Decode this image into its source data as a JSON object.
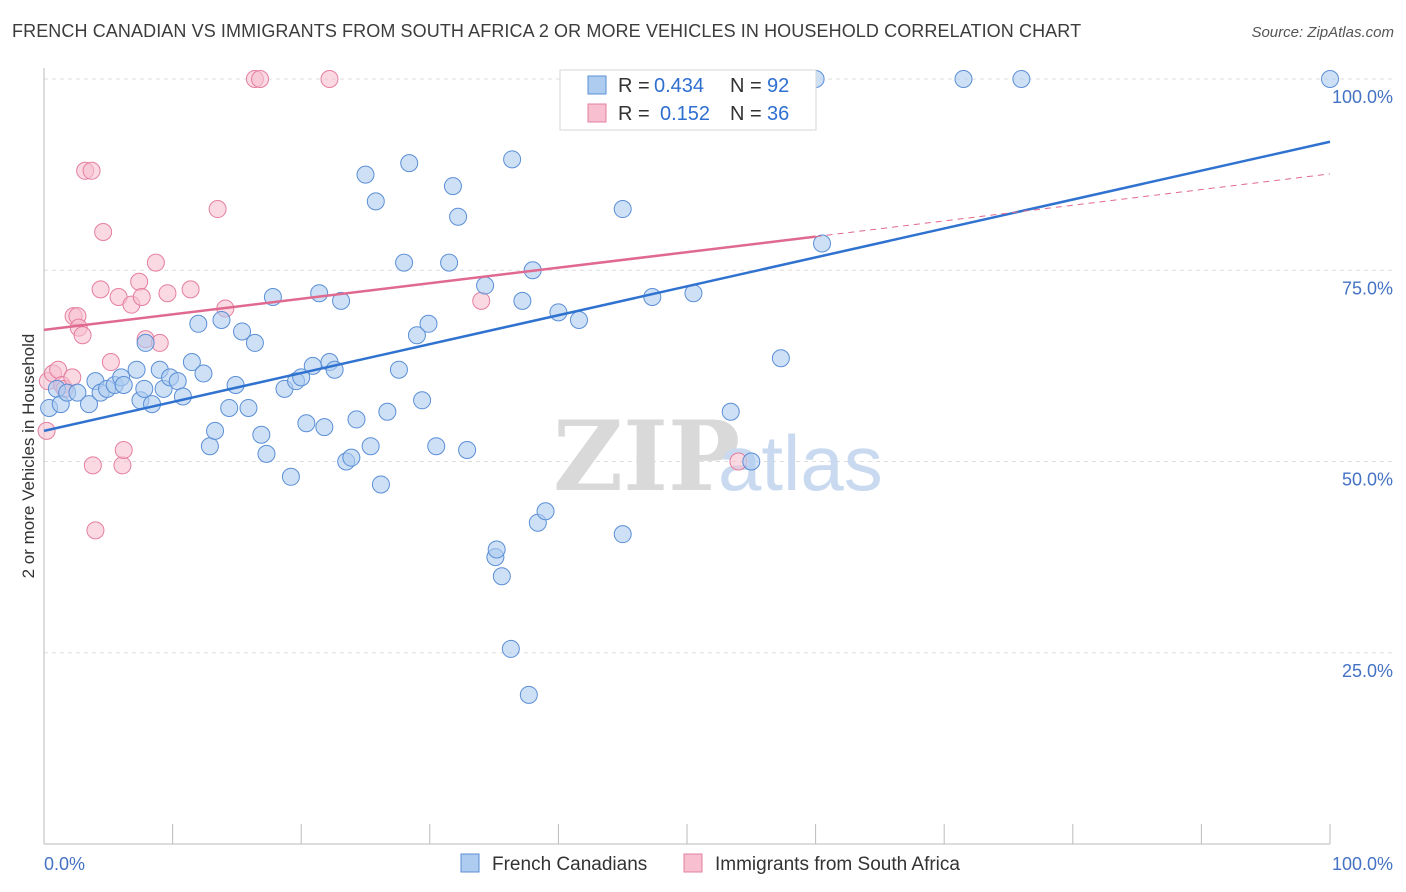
{
  "title": "FRENCH CANADIAN VS IMMIGRANTS FROM SOUTH AFRICA 2 OR MORE VEHICLES IN HOUSEHOLD CORRELATION CHART",
  "source": "Source: ZipAtlas.com",
  "watermark": {
    "zip": "ZIP",
    "atlas": "atlas"
  },
  "legend_top": {
    "rows": [
      {
        "r_label": "R =",
        "r_value": "0.434",
        "n_label": "N =",
        "n_value": "92"
      },
      {
        "r_label": "R =",
        "r_value": "0.152",
        "n_label": "N =",
        "n_value": "36"
      }
    ]
  },
  "legend_bottom": {
    "items": [
      {
        "label": "French Canadians"
      },
      {
        "label": "Immigrants from South Africa"
      }
    ]
  },
  "colors": {
    "blue_fill": "#aecbf0",
    "blue_stroke": "#5b8fd6",
    "blue_line": "#2f72cf",
    "pink_fill": "#f7bfd0",
    "pink_stroke": "#e57fa0",
    "pink_line": "#e0698f",
    "grid": "#dddddd",
    "tick_label": "#4472c4"
  },
  "chart_data": {
    "type": "scatter",
    "xlabel": "",
    "ylabel": "2 or more Vehicles in Household",
    "xlim": [
      0,
      100
    ],
    "ylim": [
      0,
      102
    ],
    "x_tick_labels": [
      "0.0%",
      "100.0%"
    ],
    "y_tick_labels": [
      "25.0%",
      "50.0%",
      "75.0%",
      "100.0%"
    ],
    "y_ticks": [
      25,
      50,
      75,
      100
    ],
    "grid": "horizontal dashed",
    "legend_placement": "top-center",
    "series": [
      {
        "name": "French Canadians",
        "R": 0.434,
        "N": 92,
        "trend": {
          "x0": 0,
          "y0": 54.0,
          "x1": 100,
          "y1": 91.8
        },
        "points": [
          [
            0.4,
            57
          ],
          [
            1.0,
            59.5
          ],
          [
            1.3,
            57.5
          ],
          [
            1.8,
            59
          ],
          [
            2.6,
            59
          ],
          [
            3.5,
            57.5
          ],
          [
            4.0,
            60.5
          ],
          [
            4.4,
            59
          ],
          [
            4.9,
            59.5
          ],
          [
            5.5,
            60
          ],
          [
            6.0,
            61
          ],
          [
            6.2,
            60
          ],
          [
            7.2,
            62
          ],
          [
            7.5,
            58
          ],
          [
            7.8,
            59.5
          ],
          [
            7.9,
            65.5
          ],
          [
            8.4,
            57.5
          ],
          [
            9.0,
            62
          ],
          [
            9.3,
            59.5
          ],
          [
            9.8,
            61
          ],
          [
            10.4,
            60.5
          ],
          [
            10.8,
            58.5
          ],
          [
            11.5,
            63
          ],
          [
            12.0,
            68
          ],
          [
            12.4,
            61.5
          ],
          [
            12.9,
            52
          ],
          [
            13.3,
            54
          ],
          [
            13.8,
            68.5
          ],
          [
            14.4,
            57
          ],
          [
            14.9,
            60
          ],
          [
            15.4,
            67
          ],
          [
            15.9,
            57
          ],
          [
            16.4,
            65.5
          ],
          [
            16.9,
            53.5
          ],
          [
            17.3,
            51
          ],
          [
            17.8,
            71.5
          ],
          [
            18.7,
            59.5
          ],
          [
            19.2,
            48
          ],
          [
            19.6,
            60.5
          ],
          [
            20.0,
            61
          ],
          [
            20.4,
            55
          ],
          [
            20.9,
            62.5
          ],
          [
            21.4,
            72
          ],
          [
            21.8,
            54.5
          ],
          [
            22.2,
            63
          ],
          [
            22.6,
            62
          ],
          [
            23.1,
            71
          ],
          [
            23.5,
            50
          ],
          [
            23.9,
            50.5
          ],
          [
            24.3,
            55.5
          ],
          [
            25.0,
            87.5
          ],
          [
            25.4,
            52
          ],
          [
            25.8,
            84
          ],
          [
            26.2,
            47
          ],
          [
            26.7,
            56.5
          ],
          [
            27.6,
            62
          ],
          [
            28.4,
            89
          ],
          [
            29.0,
            66.5
          ],
          [
            29.4,
            58
          ],
          [
            29.9,
            68
          ],
          [
            30.5,
            52
          ],
          [
            31.8,
            86
          ],
          [
            32.2,
            82
          ],
          [
            31.5,
            76
          ],
          [
            32.9,
            51.5
          ],
          [
            34.3,
            73
          ],
          [
            35.1,
            37.5
          ],
          [
            35.2,
            38.5
          ],
          [
            35.6,
            35
          ],
          [
            36.3,
            25.5
          ],
          [
            36.4,
            89.5
          ],
          [
            37.2,
            71
          ],
          [
            37.7,
            19.5
          ],
          [
            38.4,
            42
          ],
          [
            39.0,
            43.5
          ],
          [
            40.0,
            69.5
          ],
          [
            41.6,
            68.5
          ],
          [
            45.0,
            83
          ],
          [
            45.0,
            40.5
          ],
          [
            47.3,
            71.5
          ],
          [
            50.5,
            72
          ],
          [
            53.4,
            56.5
          ],
          [
            55.0,
            50
          ],
          [
            57.3,
            63.5
          ],
          [
            57.5,
            100
          ],
          [
            60.0,
            100
          ],
          [
            60.5,
            78.5
          ],
          [
            71.5,
            100
          ],
          [
            76.0,
            100
          ],
          [
            100,
            100
          ],
          [
            38.0,
            75
          ],
          [
            28.0,
            76
          ]
        ]
      },
      {
        "name": "Immigrants from South Africa",
        "R": 0.152,
        "N": 36,
        "trend": {
          "x0": 0,
          "y0": 67.2,
          "x1": 60,
          "y1": 79.4,
          "dashed_to_x": 100,
          "dashed_to_y": 87.6
        },
        "points": [
          [
            0.2,
            54
          ],
          [
            0.3,
            60.5
          ],
          [
            0.7,
            61.5
          ],
          [
            1.1,
            62
          ],
          [
            1.4,
            60
          ],
          [
            1.6,
            59.5
          ],
          [
            2.2,
            61
          ],
          [
            2.3,
            69
          ],
          [
            2.6,
            69
          ],
          [
            2.7,
            67.5
          ],
          [
            3.0,
            66.5
          ],
          [
            3.2,
            88
          ],
          [
            3.7,
            88
          ],
          [
            3.8,
            49.5
          ],
          [
            4.0,
            41
          ],
          [
            4.4,
            72.5
          ],
          [
            4.6,
            80
          ],
          [
            5.2,
            63
          ],
          [
            5.8,
            71.5
          ],
          [
            6.1,
            49.5
          ],
          [
            6.2,
            51.5
          ],
          [
            6.8,
            70.5
          ],
          [
            7.4,
            73.5
          ],
          [
            7.6,
            71.5
          ],
          [
            7.9,
            66
          ],
          [
            8.7,
            76
          ],
          [
            9.0,
            65.5
          ],
          [
            9.6,
            72
          ],
          [
            11.4,
            72.5
          ],
          [
            13.5,
            83
          ],
          [
            14.1,
            70
          ],
          [
            16.4,
            100
          ],
          [
            16.8,
            100
          ],
          [
            22.2,
            100
          ],
          [
            34.0,
            71
          ],
          [
            54.0,
            50
          ]
        ]
      }
    ]
  }
}
